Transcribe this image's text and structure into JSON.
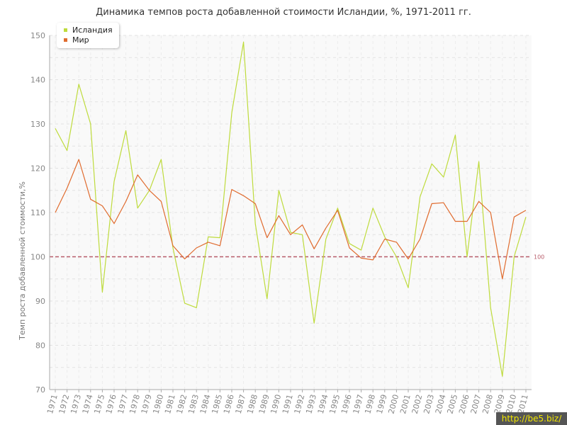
{
  "chart_data": {
    "type": "line",
    "title": "Динамика темпов роста добавленной стоимости Исландии, %, 1971-2011 гг.",
    "xlabel": "",
    "ylabel": "Темп роста добавленной стоимости,%",
    "ylim": [
      70,
      150
    ],
    "yticks": [
      70,
      80,
      90,
      100,
      110,
      120,
      130,
      140,
      150
    ],
    "grid": true,
    "legend_position": "top-left",
    "categories": [
      "1971",
      "1972",
      "1973",
      "1974",
      "1975",
      "1976",
      "1977",
      "1978",
      "1979",
      "1980",
      "1981",
      "1982",
      "1983",
      "1984",
      "1985",
      "1986",
      "1987",
      "1988",
      "1989",
      "1990",
      "1991",
      "1992",
      "1993",
      "1994",
      "1995",
      "1996",
      "1997",
      "1998",
      "1999",
      "2000",
      "2001",
      "2002",
      "2003",
      "2004",
      "2005",
      "2006",
      "2007",
      "2008",
      "2009",
      "2010",
      "2011"
    ],
    "series": [
      {
        "name": "Исландия",
        "color": "#bedb3c",
        "values": [
          129,
          124,
          139,
          130,
          92,
          117,
          128.5,
          111,
          115,
          122,
          102,
          89.5,
          88.5,
          104.5,
          104.3,
          132.5,
          148.5,
          107.5,
          90.5,
          115,
          105.5,
          105,
          85,
          104,
          111,
          103,
          101.5,
          111,
          104.5,
          100,
          93,
          113.5,
          121,
          118,
          127.5,
          100,
          121.5,
          88.5,
          73,
          100,
          109
        ]
      },
      {
        "name": "Мир",
        "color": "#e06b2e",
        "values": [
          110,
          115.5,
          122,
          113,
          111.5,
          107.5,
          112.5,
          118.5,
          115,
          112.5,
          102.5,
          99.5,
          102,
          103.3,
          102.5,
          115.2,
          113.8,
          112,
          104.3,
          109.3,
          105,
          107.2,
          101.8,
          106.5,
          110.5,
          102,
          99.7,
          99.3,
          104,
          103.3,
          99.5,
          104,
          112,
          112.2,
          108,
          108,
          112.5,
          110,
          95,
          109,
          110.5
        ]
      }
    ],
    "reference_line": {
      "value": 100,
      "label": "100",
      "color": "#b85c6a"
    }
  },
  "watermark": "http://be5.biz/"
}
